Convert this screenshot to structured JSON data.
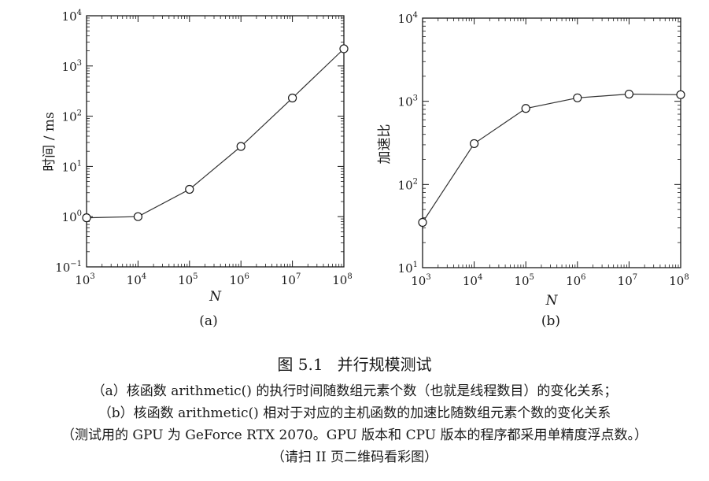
{
  "chart_data": [
    {
      "type": "line",
      "panel_label": "(a)",
      "xlabel": "N",
      "ylabel": "时间 / ms",
      "x_scale": "log",
      "y_scale": "log",
      "xlim": [
        1000,
        100000000
      ],
      "ylim": [
        0.1,
        10000
      ],
      "x_ticks": [
        {
          "value": 1000,
          "base": "10",
          "exp": "3"
        },
        {
          "value": 10000,
          "base": "10",
          "exp": "4"
        },
        {
          "value": 100000,
          "base": "10",
          "exp": "5"
        },
        {
          "value": 1000000,
          "base": "10",
          "exp": "6"
        },
        {
          "value": 10000000,
          "base": "10",
          "exp": "7"
        },
        {
          "value": 100000000,
          "base": "10",
          "exp": "8"
        }
      ],
      "y_ticks": [
        {
          "value": 0.1,
          "base": "10",
          "exp": "−1"
        },
        {
          "value": 1,
          "base": "10",
          "exp": "0"
        },
        {
          "value": 10,
          "base": "10",
          "exp": "1"
        },
        {
          "value": 100,
          "base": "10",
          "exp": "2"
        },
        {
          "value": 1000,
          "base": "10",
          "exp": "3"
        },
        {
          "value": 10000,
          "base": "10",
          "exp": "4"
        }
      ],
      "marker": "open-circle",
      "grid": false,
      "x": [
        1000,
        10000,
        100000,
        1000000,
        10000000,
        100000000
      ],
      "y": [
        0.95,
        1.0,
        3.5,
        25,
        230,
        2200
      ]
    },
    {
      "type": "line",
      "panel_label": "(b)",
      "xlabel": "N",
      "ylabel": "加速比",
      "x_scale": "log",
      "y_scale": "log",
      "xlim": [
        1000,
        100000000
      ],
      "ylim": [
        10,
        10000
      ],
      "x_ticks": [
        {
          "value": 1000,
          "base": "10",
          "exp": "3"
        },
        {
          "value": 10000,
          "base": "10",
          "exp": "4"
        },
        {
          "value": 100000,
          "base": "10",
          "exp": "5"
        },
        {
          "value": 1000000,
          "base": "10",
          "exp": "6"
        },
        {
          "value": 10000000,
          "base": "10",
          "exp": "7"
        },
        {
          "value": 100000000,
          "base": "10",
          "exp": "8"
        }
      ],
      "y_ticks": [
        {
          "value": 10,
          "base": "10",
          "exp": "1"
        },
        {
          "value": 100,
          "base": "10",
          "exp": "2"
        },
        {
          "value": 1000,
          "base": "10",
          "exp": "3"
        },
        {
          "value": 10000,
          "base": "10",
          "exp": "4"
        }
      ],
      "marker": "open-circle",
      "grid": false,
      "x": [
        1000,
        10000,
        100000,
        1000000,
        10000000,
        100000000
      ],
      "y": [
        35,
        310,
        820,
        1100,
        1220,
        1200
      ]
    }
  ],
  "caption": {
    "number": "图 5.1",
    "title": "并行规模测试",
    "line_a": "（a）核函数 arithmetic() 的执行时间随数组元素个数（也就是线程数目）的变化关系；",
    "line_b": "（b）核函数 arithmetic() 相对于对应的主机函数的加速比随数组元素个数的变化关系",
    "line_c": "（测试用的 GPU 为 GeForce RTX 2070。GPU 版本和 CPU 版本的程序都采用单精度浮点数。）",
    "line_d": "（请扫 II 页二维码看彩图）"
  },
  "colors": {
    "ink": "#1a1a1a",
    "line": "#333333"
  }
}
